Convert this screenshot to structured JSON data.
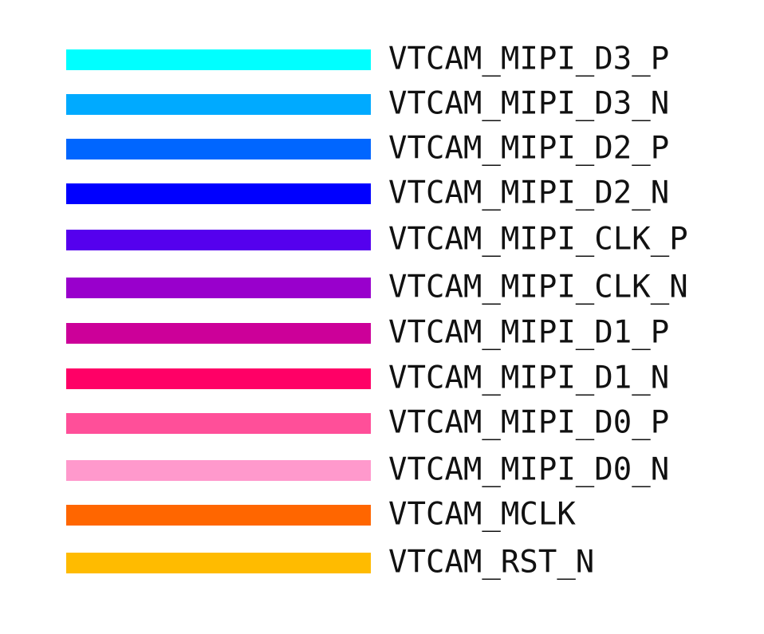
{
  "items": [
    {
      "label": "VTCAM_MIPI_D3_P",
      "color": "#00ffff"
    },
    {
      "label": "VTCAM_MIPI_D3_N",
      "color": "#00aaff"
    },
    {
      "label": "VTCAM_MIPI_D2_P",
      "color": "#0066ff"
    },
    {
      "label": "VTCAM_MIPI_D2_N",
      "color": "#0000ff"
    },
    {
      "label": "VTCAM_MIPI_CLK_P",
      "color": "#5500ee"
    },
    {
      "label": "VTCAM_MIPI_CLK_N",
      "color": "#9900cc"
    },
    {
      "label": "VTCAM_MIPI_D1_P",
      "color": "#cc0099"
    },
    {
      "label": "VTCAM_MIPI_D1_N",
      "color": "#ff0066"
    },
    {
      "label": "VTCAM_MIPI_D0_P",
      "color": "#ff4f99"
    },
    {
      "label": "VTCAM_MIPI_D0_N",
      "color": "#ff99cc"
    },
    {
      "label": "VTCAM_MCLK",
      "color": "#ff6600"
    },
    {
      "label": "VTCAM_RST_N",
      "color": "#ffbb00"
    }
  ]
}
